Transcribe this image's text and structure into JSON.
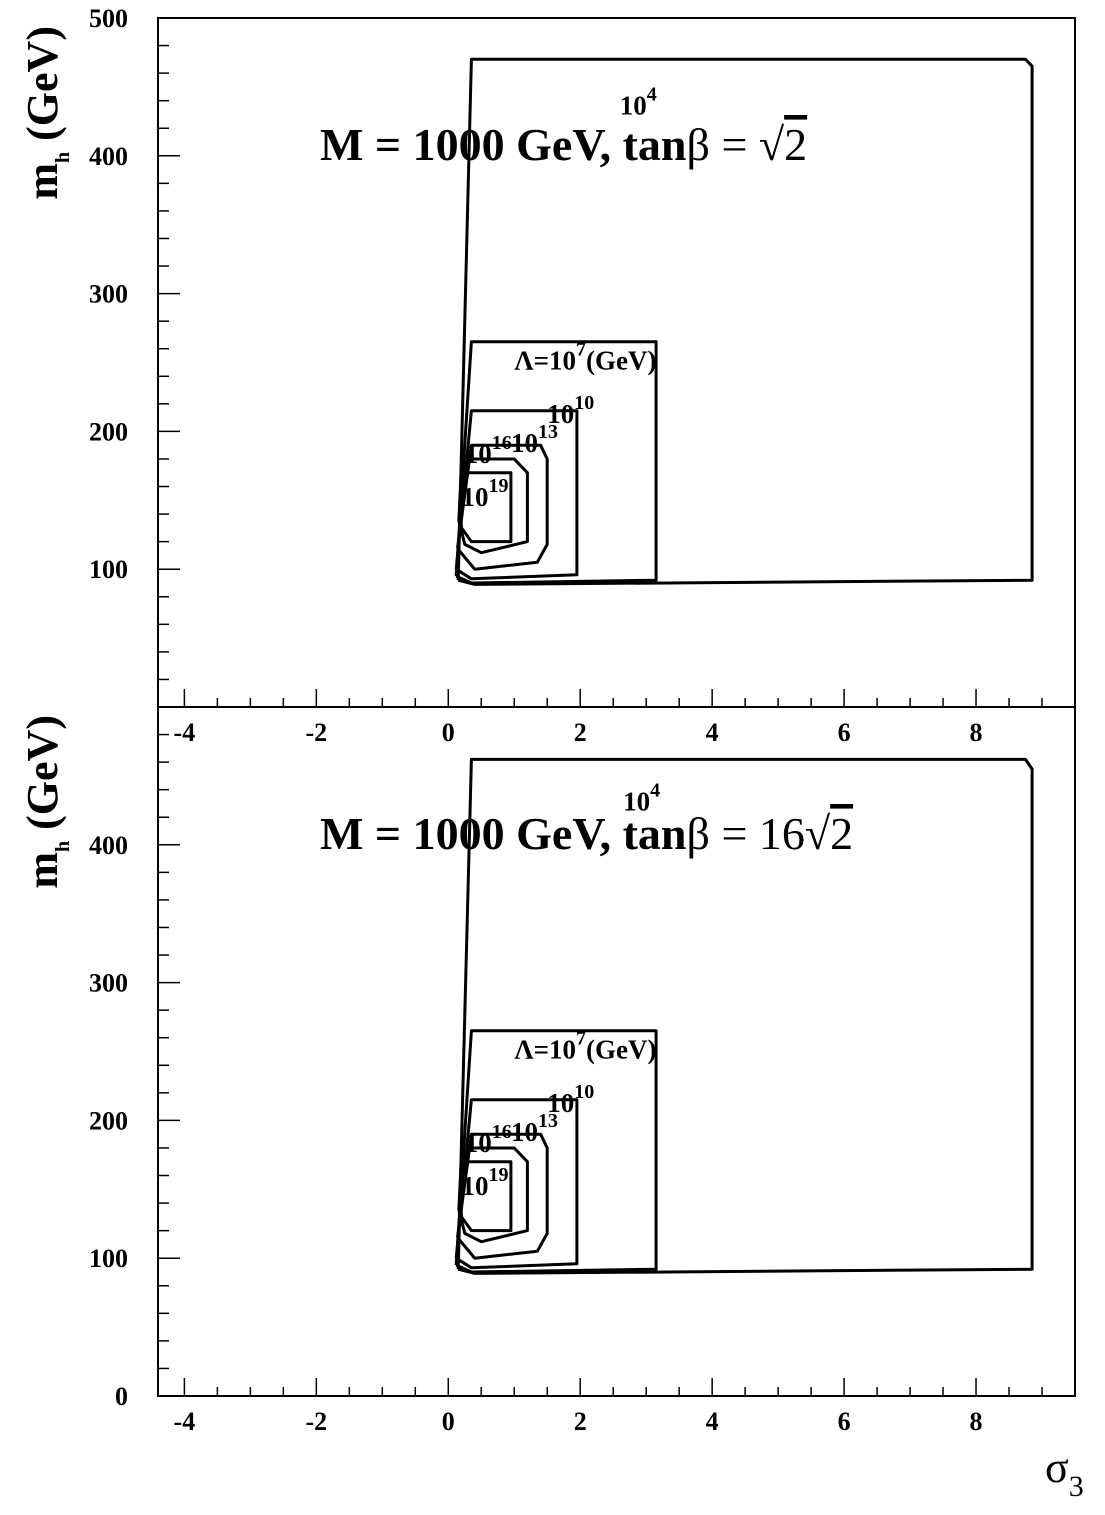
{
  "chart_data": [
    {
      "type": "line",
      "title_prefix": "M = 1000 GeV, tan",
      "title_beta": "β",
      "title_suffix": " = ",
      "title_sqrt_coeff": "",
      "title_sqrt_arg": "2",
      "ylabel_main": "m",
      "ylabel_sub": "h",
      "ylabel_rest": " (GeV)",
      "xlim": [
        -4.4,
        9.5
      ],
      "ylim": [
        0,
        500
      ],
      "x_ticks": [
        -4,
        -2,
        0,
        2,
        4,
        6,
        8
      ],
      "y_ticks": [
        100,
        200,
        300,
        400,
        500
      ],
      "grid": false,
      "contours": [
        {
          "name": "10^4",
          "label_base": "10",
          "label_exp": "4",
          "label_at": [
            2.6,
            430
          ],
          "points": [
            [
              0.15,
              92
            ],
            [
              0.35,
              470
            ],
            [
              8.75,
              470
            ],
            [
              8.85,
              465
            ],
            [
              8.85,
              92
            ],
            [
              0.4,
              89
            ],
            [
              0.15,
              92
            ]
          ]
        },
        {
          "name": "10^7",
          "label_base": "Λ=10",
          "label_exp": "7",
          "label_suffix": "(GeV)",
          "label_at": [
            1.0,
            245
          ],
          "points": [
            [
              0.12,
              95
            ],
            [
              0.35,
              265
            ],
            [
              3.15,
              265
            ],
            [
              3.15,
              92
            ],
            [
              0.35,
              90
            ],
            [
              0.12,
              95
            ]
          ]
        },
        {
          "name": "10^10",
          "label_base": "10",
          "label_exp": "10",
          "label_at": [
            1.5,
            206
          ],
          "points": [
            [
              0.12,
              100
            ],
            [
              0.35,
              215
            ],
            [
              1.95,
              215
            ],
            [
              1.95,
              96
            ],
            [
              0.35,
              93
            ],
            [
              0.12,
              100
            ]
          ]
        },
        {
          "name": "10^13",
          "label_base": "10",
          "label_exp": "13",
          "label_at": [
            0.95,
            185
          ],
          "points": [
            [
              0.14,
              115
            ],
            [
              0.35,
              190
            ],
            [
              1.4,
              190
            ],
            [
              1.5,
              180
            ],
            [
              1.5,
              118
            ],
            [
              1.35,
              105
            ],
            [
              0.4,
              100
            ],
            [
              0.14,
              115
            ]
          ]
        },
        {
          "name": "10^16",
          "label_base": "10",
          "label_exp": "16",
          "label_at": [
            0.25,
            177
          ],
          "points": [
            [
              0.16,
              135
            ],
            [
              0.2,
              175
            ],
            [
              0.35,
              180
            ],
            [
              1.0,
              180
            ],
            [
              1.2,
              170
            ],
            [
              1.2,
              120
            ],
            [
              0.5,
              112
            ],
            [
              0.25,
              118
            ],
            [
              0.16,
              135
            ]
          ]
        },
        {
          "name": "10^19",
          "label_base": "10",
          "label_exp": "19",
          "label_at": [
            0.2,
            146
          ],
          "points": [
            [
              0.18,
              150
            ],
            [
              0.3,
              170
            ],
            [
              0.95,
              170
            ],
            [
              0.95,
              120
            ],
            [
              0.35,
              120
            ],
            [
              0.2,
              130
            ],
            [
              0.18,
              150
            ]
          ]
        }
      ]
    },
    {
      "type": "line",
      "title_prefix": "M = 1000 GeV, tan",
      "title_beta": "β",
      "title_suffix": " = ",
      "title_sqrt_coeff": "16",
      "title_sqrt_arg": "2",
      "ylabel_main": "m",
      "ylabel_sub": "h",
      "ylabel_rest": " (GeV)",
      "xlabel": "σ",
      "xlabel_sub": "3",
      "xlim": [
        -4.4,
        9.5
      ],
      "ylim": [
        0,
        500
      ],
      "x_ticks": [
        -4,
        -2,
        0,
        2,
        4,
        6,
        8
      ],
      "y_ticks": [
        0,
        100,
        200,
        300,
        400
      ],
      "grid": false,
      "contours": [
        {
          "name": "10^4",
          "label_base": "10",
          "label_exp": "4",
          "label_at": [
            2.65,
            425
          ],
          "points": [
            [
              0.15,
              92
            ],
            [
              0.35,
              462
            ],
            [
              8.75,
              462
            ],
            [
              8.85,
              455
            ],
            [
              8.85,
              92
            ],
            [
              0.4,
              89
            ],
            [
              0.15,
              92
            ]
          ]
        },
        {
          "name": "10^7",
          "label_base": "Λ=10",
          "label_exp": "7",
          "label_suffix": "(GeV)",
          "label_at": [
            1.0,
            245
          ],
          "points": [
            [
              0.12,
              95
            ],
            [
              0.35,
              265
            ],
            [
              3.15,
              265
            ],
            [
              3.15,
              92
            ],
            [
              0.35,
              90
            ],
            [
              0.12,
              95
            ]
          ]
        },
        {
          "name": "10^10",
          "label_base": "10",
          "label_exp": "10",
          "label_at": [
            1.5,
            206
          ],
          "points": [
            [
              0.12,
              100
            ],
            [
              0.35,
              215
            ],
            [
              1.95,
              215
            ],
            [
              1.95,
              96
            ],
            [
              0.35,
              93
            ],
            [
              0.12,
              100
            ]
          ]
        },
        {
          "name": "10^13",
          "label_base": "10",
          "label_exp": "13",
          "label_at": [
            0.95,
            185
          ],
          "points": [
            [
              0.14,
              115
            ],
            [
              0.35,
              190
            ],
            [
              1.4,
              190
            ],
            [
              1.5,
              180
            ],
            [
              1.5,
              118
            ],
            [
              1.35,
              105
            ],
            [
              0.4,
              100
            ],
            [
              0.14,
              115
            ]
          ]
        },
        {
          "name": "10^16",
          "label_base": "10",
          "label_exp": "16",
          "label_at": [
            0.25,
            177
          ],
          "points": [
            [
              0.16,
              135
            ],
            [
              0.2,
              175
            ],
            [
              0.35,
              180
            ],
            [
              1.0,
              180
            ],
            [
              1.2,
              170
            ],
            [
              1.2,
              120
            ],
            [
              0.5,
              112
            ],
            [
              0.25,
              118
            ],
            [
              0.16,
              135
            ]
          ]
        },
        {
          "name": "10^19",
          "label_base": "10",
          "label_exp": "19",
          "label_at": [
            0.2,
            146
          ],
          "points": [
            [
              0.18,
              150
            ],
            [
              0.3,
              170
            ],
            [
              0.95,
              170
            ],
            [
              0.95,
              120
            ],
            [
              0.35,
              120
            ],
            [
              0.2,
              130
            ],
            [
              0.18,
              150
            ]
          ]
        }
      ]
    }
  ]
}
